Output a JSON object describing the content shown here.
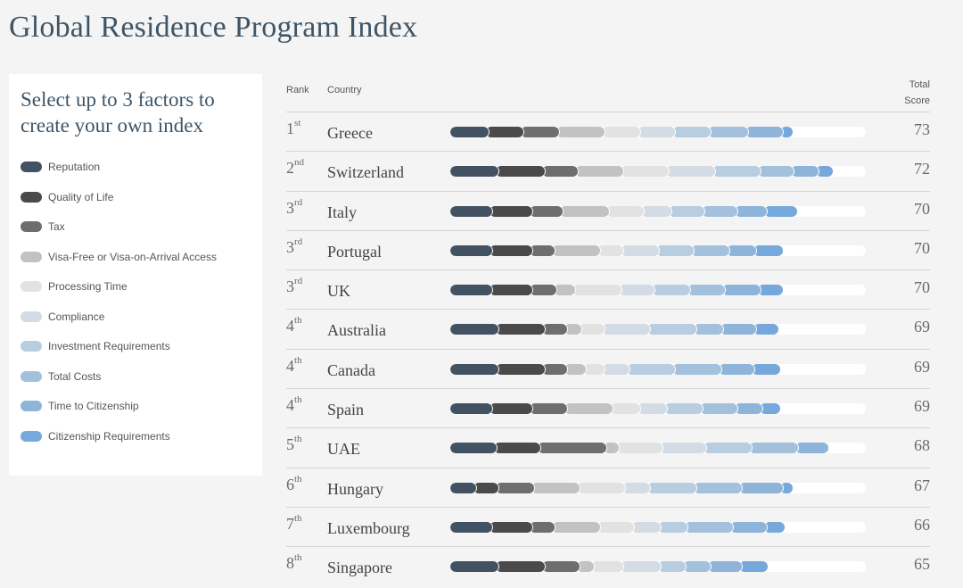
{
  "page": {
    "title": "Global Residence Program Index"
  },
  "panel": {
    "heading": "Select up to 3 factors to create your own index"
  },
  "factors": [
    {
      "label": "Reputation",
      "color": "#435263"
    },
    {
      "label": "Quality of Life",
      "color": "#4a4a4a"
    },
    {
      "label": "Tax",
      "color": "#6e6e6e"
    },
    {
      "label": "Visa-Free or Visa-on-Arrival Access",
      "color": "#c2c2c2"
    },
    {
      "label": "Processing Time",
      "color": "#e2e2e2"
    },
    {
      "label": "Compliance",
      "color": "#d3dbe4"
    },
    {
      "label": "Investment Requirements",
      "color": "#b8cde0"
    },
    {
      "label": "Total Costs",
      "color": "#a3c0dc"
    },
    {
      "label": "Time to Citizenship",
      "color": "#8fb4da"
    },
    {
      "label": "Citizenship Requirements",
      "color": "#77a8db"
    }
  ],
  "table": {
    "headers": {
      "rank": "Rank",
      "country": "Country",
      "total_line1": "Total",
      "total_line2": "Score"
    },
    "rows": [
      {
        "rank": "1",
        "suffix": "st",
        "country": "Greece",
        "score": "73",
        "segments": [
          8.5,
          8.5,
          8.5,
          11,
          8.5,
          8.5,
          8.5,
          9,
          8.5,
          3.0
        ]
      },
      {
        "rank": "2",
        "suffix": "nd",
        "country": "Switzerland",
        "score": "72",
        "segments": [
          11,
          11,
          8,
          11,
          11,
          11,
          11,
          8,
          6,
          4.0
        ]
      },
      {
        "rank": "3",
        "suffix": "rd",
        "country": "Italy",
        "score": "70",
        "segments": [
          9.5,
          9.5,
          7.5,
          11,
          8.5,
          6.5,
          8,
          8,
          7,
          8.0
        ]
      },
      {
        "rank": "3",
        "suffix": "rd",
        "country": "Portugal",
        "score": "70",
        "segments": [
          9.5,
          9.5,
          5.5,
          11,
          5.5,
          8.5,
          8.5,
          8.5,
          6.5,
          7.0
        ]
      },
      {
        "rank": "3",
        "suffix": "rd",
        "country": "UK",
        "score": "70",
        "segments": [
          9.5,
          9.5,
          6,
          4.5,
          11,
          8,
          8.5,
          8.5,
          8.5,
          6.0
        ]
      },
      {
        "rank": "4",
        "suffix": "th",
        "country": "Australia",
        "score": "69",
        "segments": [
          11,
          11,
          5.5,
          3.5,
          5.5,
          11,
          11,
          6.5,
          8,
          6.0
        ]
      },
      {
        "rank": "4",
        "suffix": "th",
        "country": "Canada",
        "score": "69",
        "segments": [
          11,
          11,
          5.5,
          4.5,
          4.5,
          6,
          11,
          11,
          8,
          7.0
        ]
      },
      {
        "rank": "4",
        "suffix": "th",
        "country": "Spain",
        "score": "69",
        "segments": [
          9.5,
          9.5,
          8.5,
          11,
          6.5,
          6.5,
          8.5,
          8.5,
          6,
          5.0
        ]
      },
      {
        "rank": "5",
        "suffix": "th",
        "country": "UAE",
        "score": "68",
        "segments": [
          10.5,
          10.5,
          16,
          3,
          10.5,
          10.5,
          11,
          11,
          7.5,
          0.5
        ]
      },
      {
        "rank": "6",
        "suffix": "th",
        "country": "Hungary",
        "score": "67",
        "segments": [
          5.5,
          5.5,
          8.5,
          11,
          11,
          6,
          11,
          11,
          10,
          3.0
        ]
      },
      {
        "rank": "7",
        "suffix": "th",
        "country": "Luxembourg",
        "score": "66",
        "segments": [
          9.5,
          9.5,
          5.5,
          11,
          8,
          6.5,
          6.5,
          11,
          8,
          5.0
        ]
      },
      {
        "rank": "8",
        "suffix": "th",
        "country": "Singapore",
        "score": "65",
        "segments": [
          11,
          11,
          8.5,
          3.5,
          7,
          9,
          6,
          6,
          7.5,
          7.0
        ]
      }
    ]
  }
}
